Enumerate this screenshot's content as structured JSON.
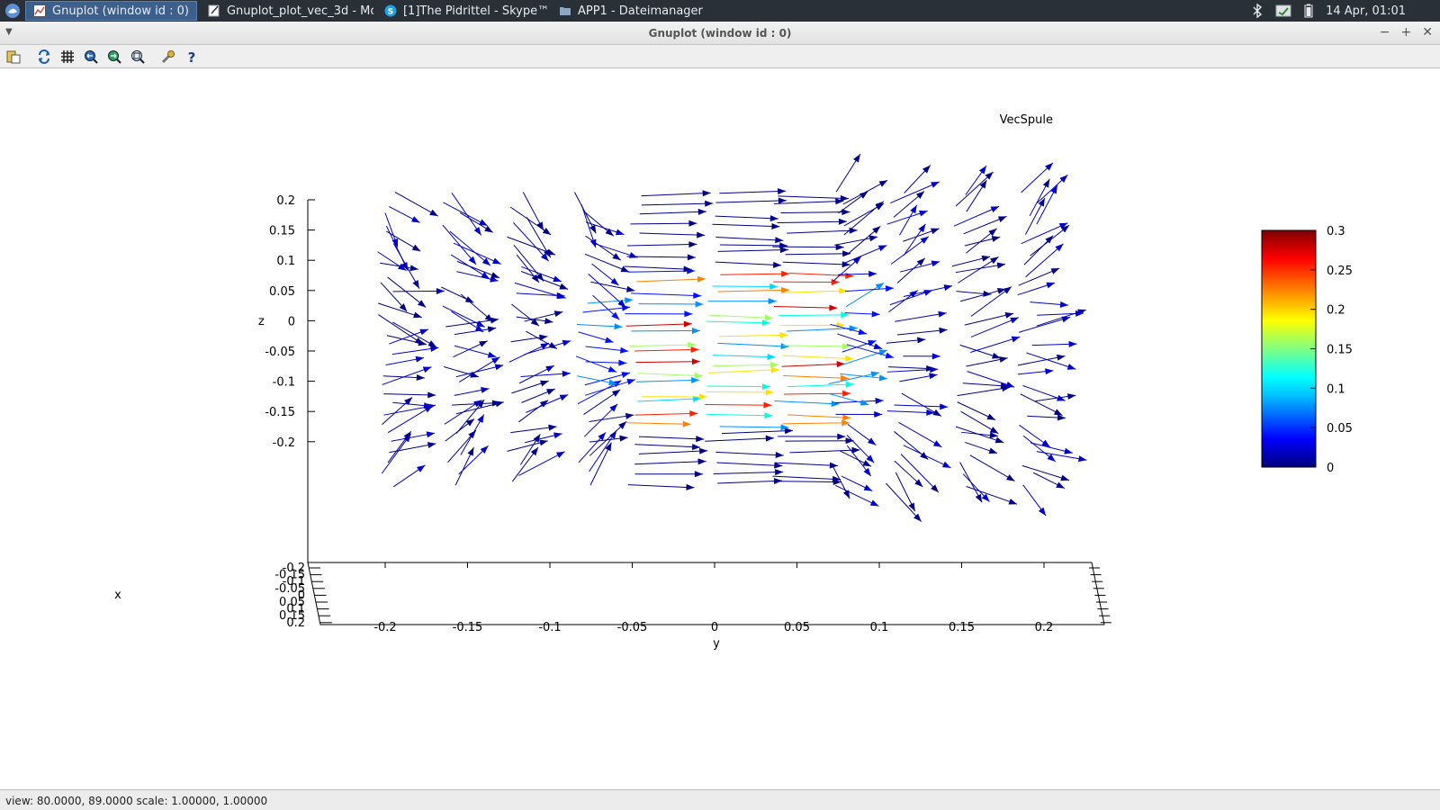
{
  "taskbar": {
    "tasks": [
      {
        "label": "Gnuplot (window id : 0)",
        "active": true
      },
      {
        "label": "Gnuplot_plot_vec_3d - Mo...",
        "active": false
      },
      {
        "label": "[1]The Pidrittel - Skype™",
        "active": false
      },
      {
        "label": "APP1 - Dateimanager",
        "active": false
      }
    ],
    "clock": "14 Apr, 01:01"
  },
  "window": {
    "title": "Gnuplot (window id : 0)"
  },
  "toolbar": {
    "icons": [
      "copy-clipboard-icon",
      "replot-icon",
      "grid-icon",
      "zoom-previous-icon",
      "zoom-next-icon",
      "autoscale-icon",
      "settings-icon",
      "help-icon"
    ]
  },
  "chart_data": {
    "type": "vector-field-3d",
    "legend": {
      "label": "VecSpule",
      "position": "top-right"
    },
    "zlabel": "z",
    "ylabel": "y",
    "xlabel": "x",
    "zticks": [
      "0.2",
      "0.15",
      "0.1",
      "0.05",
      "0",
      "-0.05",
      "-0.1",
      "-0.15",
      "-0.2"
    ],
    "yticks": [
      "-0.2",
      "-0.15",
      "-0.1",
      "-0.05",
      "0",
      "0.05",
      "0.1",
      "0.15",
      "0.2"
    ],
    "xticks": [
      "-0.2",
      "-0.15",
      "-0.1",
      "-0.05",
      "0",
      "0.05",
      "0.1",
      "0.15",
      "0.2"
    ],
    "zlim": [
      -0.25,
      0.2
    ],
    "ylim": [
      -0.25,
      0.25
    ],
    "xlim": [
      -0.2,
      0.2
    ],
    "colorbar": {
      "min": 0,
      "max": 0.3,
      "ticks": [
        "0.3",
        "0.25",
        "0.2",
        "0.15",
        "0.1",
        "0.05",
        "0"
      ],
      "palette": [
        "#000080",
        "#0000ff",
        "#00bfff",
        "#00ffff",
        "#80ff80",
        "#ffff00",
        "#ff8000",
        "#ff0000",
        "#800000"
      ]
    },
    "coil_y_range": [
      -0.05,
      0.04
    ],
    "view": {
      "rot_x": 80.0,
      "rot_z": 89.0
    }
  },
  "status": {
    "text": "view: 80.0000, 89.0000   scale: 1.00000, 1.00000"
  }
}
